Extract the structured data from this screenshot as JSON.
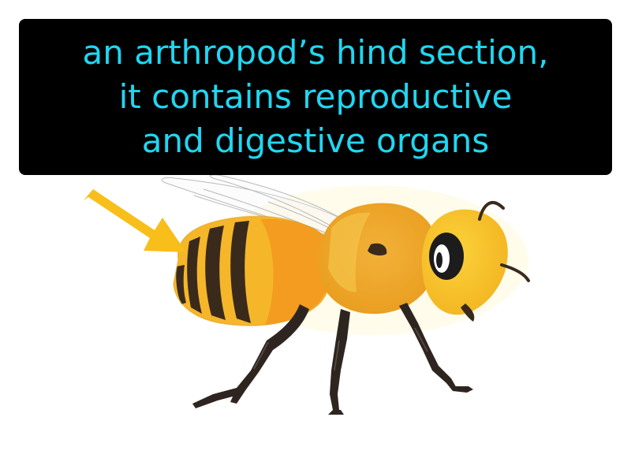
{
  "definition": {
    "lines": [
      "an arthropod’s hind section,",
      "it contains reproductive",
      "and digestive organs"
    ]
  },
  "illustration": {
    "subject_icon": "bee-illustration",
    "pointer_icon": "arrow-icon",
    "colors": {
      "text": "#1fd7f2",
      "box": "#000000",
      "arrow": "#f8be1a",
      "body_yellow": "#f6b62a",
      "body_orange": "#f39c1f",
      "stripes": "#3a2a1c",
      "legs": "#2f2520"
    }
  }
}
